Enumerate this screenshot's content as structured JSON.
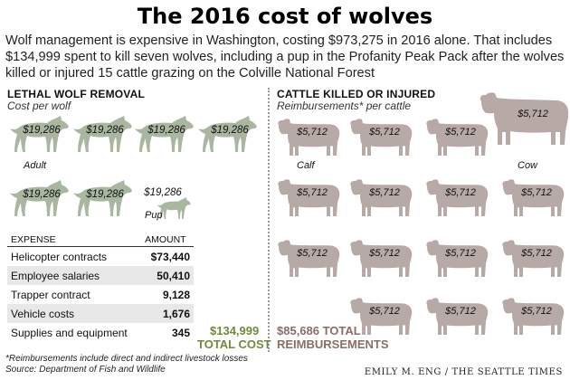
{
  "title": "The 2016 cost of wolves",
  "intro": "Wolf management is expensive in Washington, costing $973,275 in 2016 alone. That includes $134,999 spent to kill seven wolves, including a pup in the Profanity Peak Pack after the wolves killed or injured 15 cattle grazing on the Colville National Forest",
  "wolves": {
    "heading": "LETHAL WOLF REMOVAL",
    "subheading": "Cost per wolf",
    "adult_label": "Adult",
    "pup_label": "Pup",
    "items": [
      {
        "value_label": "$19,286",
        "kind": "adult"
      },
      {
        "value_label": "$19,286",
        "kind": "adult"
      },
      {
        "value_label": "$19,286",
        "kind": "adult"
      },
      {
        "value_label": "$19,286",
        "kind": "adult"
      },
      {
        "value_label": "$19,286",
        "kind": "adult"
      },
      {
        "value_label": "$19,286",
        "kind": "adult"
      },
      {
        "value_label": "$19,286",
        "kind": "pup"
      }
    ],
    "color": "#a9b7a1"
  },
  "expenses": {
    "header_expense": "EXPENSE",
    "header_amount": "AMOUNT",
    "rows": [
      {
        "label": "Helicopter contracts",
        "amount": "$73,440"
      },
      {
        "label": "Employee salaries",
        "amount": "50,410"
      },
      {
        "label": "Trapper contract",
        "amount": "9,128"
      },
      {
        "label": "Vehicle costs",
        "amount": "1,676"
      },
      {
        "label": "Supplies and equipment",
        "amount": "345"
      }
    ]
  },
  "wolf_total": {
    "amount": "$134,999",
    "label": "TOTAL COST",
    "color": "#6e8a3a"
  },
  "cattle": {
    "heading": "CATTLE KILLED OR INJURED",
    "subheading": "Reimbursements* per cattle",
    "calf_label": "Calf",
    "cow_label": "Cow",
    "value_label": "$5,712",
    "count": 15,
    "color": "#b7a9a6"
  },
  "cattle_total": {
    "amount": "$85,686 TOTAL",
    "label": "REIMBURSEMENTS",
    "color": "#8a6e66"
  },
  "footnote_1": "*Reimbursements include direct and indirect livestock losses",
  "footnote_2": "Source: Department of Fish and Wildlife",
  "byline": "EMILY M. ENG / THE SEATTLE TIMES",
  "chart_data": {
    "type": "table",
    "title": "The 2016 cost of wolves",
    "wolf_removal": {
      "wolves_killed": 7,
      "adults": 6,
      "pups": 1,
      "cost_per_wolf": 19286,
      "expenses": [
        {
          "expense": "Helicopter contracts",
          "amount": 73440
        },
        {
          "expense": "Employee salaries",
          "amount": 50410
        },
        {
          "expense": "Trapper contract",
          "amount": 9128
        },
        {
          "expense": "Vehicle costs",
          "amount": 1676
        },
        {
          "expense": "Supplies and equipment",
          "amount": 345
        }
      ],
      "total_cost": 134999
    },
    "cattle": {
      "count": 15,
      "calves": 14,
      "cows": 1,
      "reimbursement_per_cattle": 5712,
      "total_reimbursements": 85686
    }
  }
}
